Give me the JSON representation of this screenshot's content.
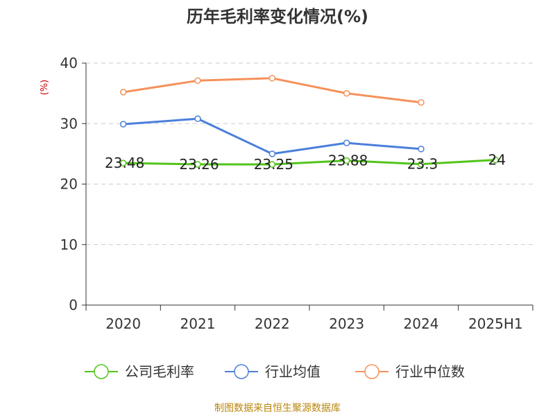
{
  "chart_data": {
    "type": "line",
    "title": "历年毛利率变化情况(%)",
    "ylabel": "(%)",
    "xlabel": "",
    "categories": [
      "2020",
      "2021",
      "2022",
      "2023",
      "2024",
      "2025H1"
    ],
    "ylim": [
      0,
      40
    ],
    "yticks": [
      0,
      10,
      20,
      30,
      40
    ],
    "grid": true,
    "legend_position": "bottom",
    "series": [
      {
        "name": "公司毛利率",
        "color": "#52c41a",
        "values": [
          23.48,
          23.26,
          23.25,
          23.88,
          23.3,
          24
        ],
        "data_labels": [
          "23.48",
          "23.26",
          "23.25",
          "23.88",
          "23.3",
          "24"
        ]
      },
      {
        "name": "行业均值",
        "color": "#4a7fdb",
        "values": [
          29.9,
          30.8,
          25.0,
          26.8,
          25.8,
          null
        ]
      },
      {
        "name": "行业中位数",
        "color": "#f5915a",
        "values": [
          35.2,
          37.1,
          37.5,
          35.0,
          33.5,
          null
        ]
      }
    ]
  },
  "source_note": "制图数据来自恒生聚源数据库"
}
